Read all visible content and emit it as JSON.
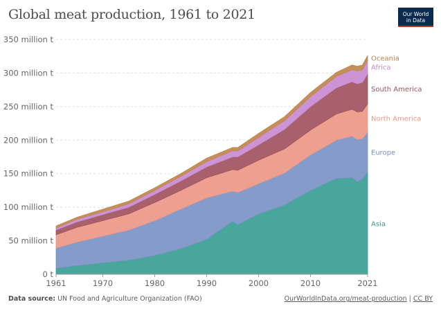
{
  "title": "Global meat production, 1961 to 2021",
  "logo": {
    "line1": "Our World",
    "line2": "in Data"
  },
  "footer": {
    "source_label": "Data source:",
    "source_text": "UN Food and Agriculture Organization (FAO)",
    "link": "OurWorldInData.org/meat-production",
    "separator": "|",
    "license": "CC BY"
  },
  "chart_data": {
    "type": "area",
    "stacked": true,
    "xlim": [
      1961,
      2021
    ],
    "ylim": [
      0,
      350
    ],
    "x_ticks": [
      "1961",
      "1970",
      "1980",
      "1990",
      "2000",
      "2010",
      "2021"
    ],
    "y_ticks": [
      {
        "value": 0,
        "label": "0 t"
      },
      {
        "value": 50,
        "label": "50 million t"
      },
      {
        "value": 100,
        "label": "100 million t"
      },
      {
        "value": 150,
        "label": "150 million t"
      },
      {
        "value": 200,
        "label": "200 million t"
      },
      {
        "value": 250,
        "label": "250 million t"
      },
      {
        "value": 300,
        "label": "300 million t"
      },
      {
        "value": 350,
        "label": "350 million t"
      }
    ],
    "grid": "horizontal dashed",
    "legend": "direct labels at right",
    "x": [
      1961,
      1965,
      1970,
      1975,
      1980,
      1985,
      1990,
      1995,
      1996,
      2000,
      2005,
      2010,
      2015,
      2018,
      2019,
      2020,
      2021
    ],
    "series": [
      {
        "name": "Asia",
        "color": "#3a9e95",
        "values": [
          9,
          13,
          17,
          21,
          28,
          38,
          52,
          79,
          74,
          90,
          103,
          125,
          143,
          144,
          138,
          142,
          152
        ]
      },
      {
        "name": "Europe",
        "color": "#7b93c4",
        "values": [
          30,
          35,
          40,
          45,
          52,
          59,
          62,
          45,
          48,
          45,
          48,
          53,
          57,
          62,
          63,
          60,
          60
        ]
      },
      {
        "name": "North America",
        "color": "#ec9886",
        "values": [
          20,
          22,
          23,
          24,
          27,
          28,
          30,
          32,
          33,
          35,
          36,
          37,
          39,
          40,
          41,
          41,
          42
        ]
      },
      {
        "name": "South America",
        "color": "#a05260",
        "values": [
          7,
          8,
          9,
          10,
          12,
          14,
          16,
          19,
          20,
          23,
          29,
          35,
          39,
          41,
          42,
          43,
          45
        ]
      },
      {
        "name": "Africa",
        "color": "#c88bd0",
        "values": [
          3,
          4,
          4,
          5,
          6,
          7,
          8,
          9,
          9,
          11,
          13,
          15,
          17,
          18,
          19,
          19,
          20
        ]
      },
      {
        "name": "Oceania",
        "color": "#c0864d",
        "values": [
          3,
          3,
          4,
          4,
          4,
          4,
          5,
          5,
          5,
          6,
          6,
          6,
          6,
          7,
          7,
          7,
          7
        ]
      }
    ]
  }
}
